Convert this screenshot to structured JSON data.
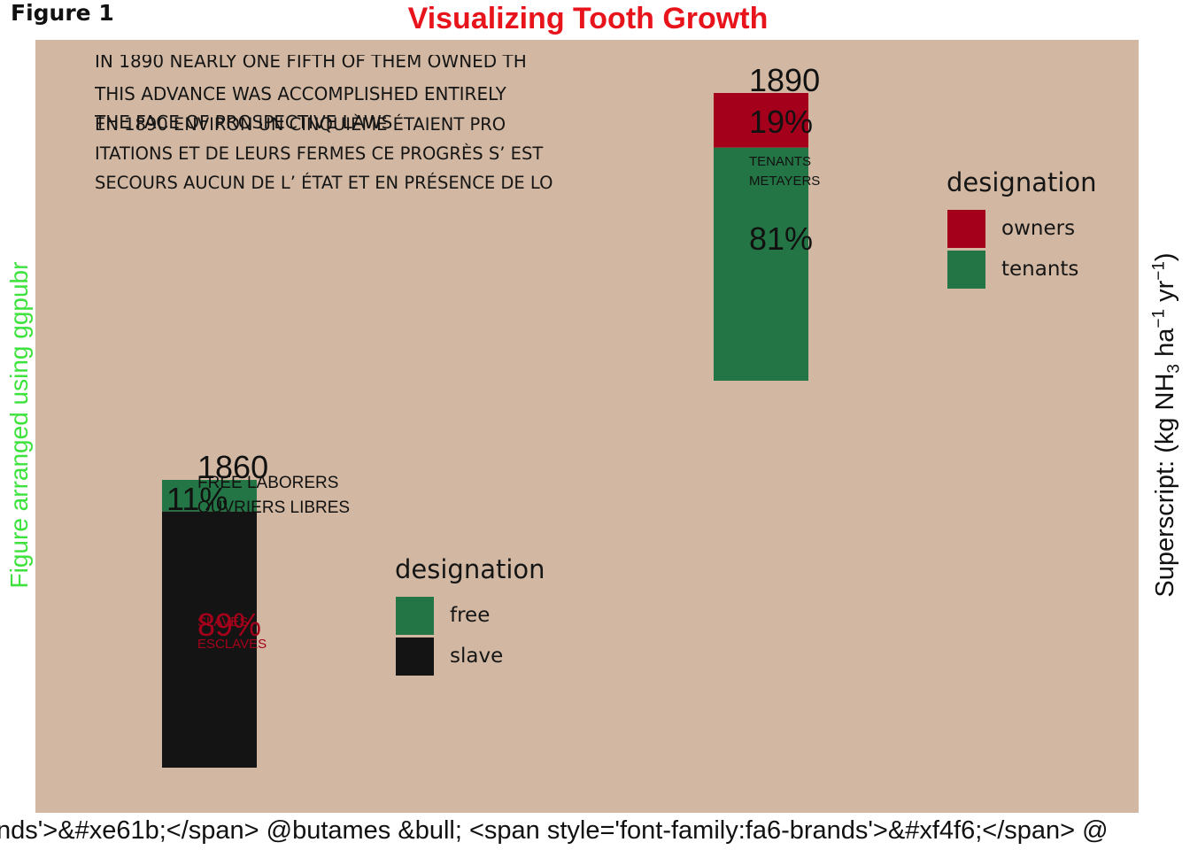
{
  "figure_label": "Figure 1",
  "title": "Visualizing Tooth Growth",
  "left_caption": "Figure arranged using ggpubr",
  "right_caption": {
    "prefix": "Superscript: (kg NH",
    "sub": "3",
    "mid": " ha",
    "sup1": "−1",
    "mid2": " yr",
    "sup2": "−1",
    "suffix": ")"
  },
  "bottom_caption": "nds'>&#xe61b;</span> @butames &bull; <span style='font-family:fa6-brands'>&#xf4f6;</span> @",
  "paragraph": {
    "en": [
      "IN 1890 NEARLY ONE FIFTH OF THEM OWNED TH",
      "THIS ADVANCE WAS ACCOMPLISHED ENTIRELY",
      "THE FACE OF PROSPECTIVE LAWS."
    ],
    "fr": [
      "EN 1890 ENVIRON UN CINQUIÈME ÉTAIENT PRO",
      "ITATIONS ET DE LEURS FERMES CE PROGRÈS S’ EST",
      "SECOURS AUCUN DE L’ ÉTAT ET EN PRÉSENCE DE LO"
    ]
  },
  "colors": {
    "background": "#d2b8a2",
    "owners": "#a5001b",
    "tenants": "#247545",
    "free": "#247545",
    "slave": "#141414",
    "title": "#e8141b",
    "left_caption": "#3de23d"
  },
  "chart_data": [
    {
      "type": "bar",
      "stacked": true,
      "year": "1860",
      "segments": [
        {
          "name": "free",
          "percent": 11,
          "label": "11%",
          "sublabels": [
            "FREE LABORERS",
            "OUVRIERS LIBRES"
          ]
        },
        {
          "name": "slave",
          "percent": 89,
          "label": "89%",
          "sublabels": [
            "SLAVES",
            "ESCLAVES"
          ]
        }
      ],
      "legend": {
        "title": "designation",
        "items": [
          "free",
          "slave"
        ]
      }
    },
    {
      "type": "bar",
      "stacked": true,
      "year": "1890",
      "segments": [
        {
          "name": "owners",
          "percent": 19,
          "label": "19%",
          "sublabels": []
        },
        {
          "name": "tenants",
          "percent": 81,
          "label": "81%",
          "sublabels": [
            "TENANTS",
            "METAYERS"
          ]
        }
      ],
      "legend": {
        "title": "designation",
        "items": [
          "owners",
          "tenants"
        ]
      }
    }
  ]
}
